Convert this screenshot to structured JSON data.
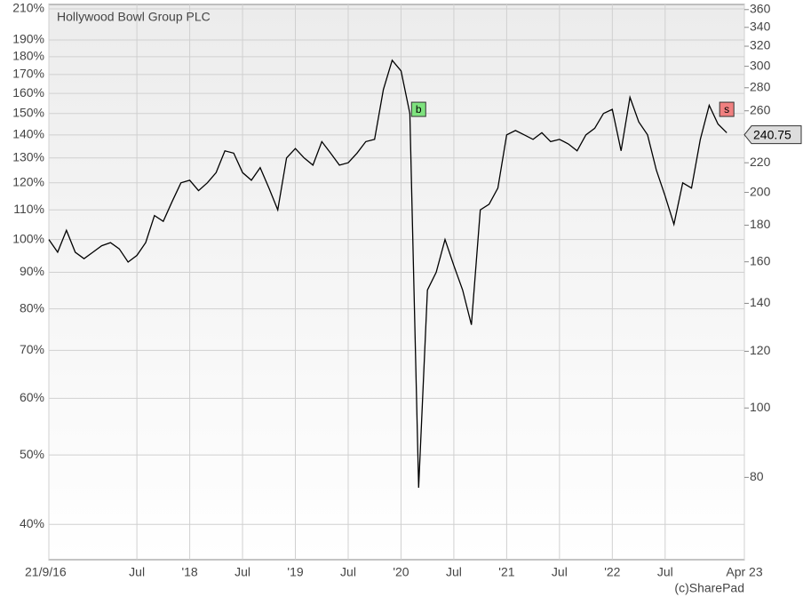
{
  "chart_data": {
    "type": "line",
    "title": "Hollywood Bowl Group PLC",
    "credit": "(c)SharePad",
    "log_scale": true,
    "grid": true,
    "x": [
      "2016-09",
      "2016-10",
      "2016-11",
      "2016-12",
      "2017-01",
      "2017-02",
      "2017-03",
      "2017-04",
      "2017-05",
      "2017-06",
      "2017-07",
      "2017-08",
      "2017-09",
      "2017-10",
      "2017-11",
      "2017-12",
      "2018-01",
      "2018-02",
      "2018-03",
      "2018-04",
      "2018-05",
      "2018-06",
      "2018-07",
      "2018-08",
      "2018-09",
      "2018-10",
      "2018-11",
      "2018-12",
      "2019-01",
      "2019-02",
      "2019-03",
      "2019-04",
      "2019-05",
      "2019-06",
      "2019-07",
      "2019-08",
      "2019-09",
      "2019-10",
      "2019-11",
      "2019-12",
      "2020-01",
      "2020-02",
      "2020-03",
      "2020-04",
      "2020-05",
      "2020-06",
      "2020-07",
      "2020-08",
      "2020-09",
      "2020-10",
      "2020-11",
      "2020-12",
      "2021-01",
      "2021-02",
      "2021-03",
      "2021-04",
      "2021-05",
      "2021-06",
      "2021-07",
      "2021-08",
      "2021-09",
      "2021-10",
      "2021-11",
      "2021-12",
      "2022-01",
      "2022-02",
      "2022-03",
      "2022-04",
      "2022-05",
      "2022-06",
      "2022-07",
      "2022-08",
      "2022-09",
      "2022-10",
      "2022-11",
      "2022-12",
      "2023-01",
      "2023-02"
    ],
    "series": [
      {
        "color": "#000000",
        "values": [
          100,
          96,
          103,
          96,
          94,
          96,
          98,
          99,
          97,
          93,
          95,
          99,
          108,
          106,
          113,
          120,
          121,
          117,
          120,
          124,
          133,
          132,
          124,
          121,
          126,
          118,
          110,
          130,
          134,
          130,
          127,
          137,
          132,
          127,
          128,
          132,
          137,
          138,
          162,
          178,
          172,
          150,
          45,
          85,
          90,
          100,
          92,
          85,
          76,
          110,
          112,
          118,
          140,
          142,
          140,
          138,
          141,
          137,
          138,
          136,
          133,
          140,
          143,
          150,
          152,
          133,
          158,
          146,
          140,
          125,
          115,
          105,
          120,
          118,
          138,
          154,
          145,
          141
        ]
      }
    ],
    "xlim": [
      "2016-09",
      "2023-04"
    ],
    "xticks": [
      {
        "value": "2016-09",
        "label": "21/9/16"
      },
      {
        "value": "2017-07",
        "label": "Jul"
      },
      {
        "value": "2018-01",
        "label": "'18"
      },
      {
        "value": "2018-07",
        "label": "Jul"
      },
      {
        "value": "2019-01",
        "label": "'19"
      },
      {
        "value": "2019-07",
        "label": "Jul"
      },
      {
        "value": "2020-01",
        "label": "'20"
      },
      {
        "value": "2020-07",
        "label": "Jul"
      },
      {
        "value": "2021-01",
        "label": "'21"
      },
      {
        "value": "2021-07",
        "label": "Jul"
      },
      {
        "value": "2022-01",
        "label": "'22"
      },
      {
        "value": "2022-07",
        "label": "Jul"
      },
      {
        "value": "2023-04",
        "label": "Apr 23"
      }
    ],
    "ylim": [
      35.7,
      213
    ],
    "yticks": [
      {
        "value": 40,
        "label": "40%"
      },
      {
        "value": 50,
        "label": "50%"
      },
      {
        "value": 60,
        "label": "60%"
      },
      {
        "value": 70,
        "label": "70%"
      },
      {
        "value": 80,
        "label": "80%"
      },
      {
        "value": 90,
        "label": "90%"
      },
      {
        "value": 100,
        "label": "100%"
      },
      {
        "value": 110,
        "label": "110%"
      },
      {
        "value": 120,
        "label": "120%"
      },
      {
        "value": 130,
        "label": "130%"
      },
      {
        "value": 140,
        "label": "140%"
      },
      {
        "value": 150,
        "label": "150%"
      },
      {
        "value": 160,
        "label": "160%"
      },
      {
        "value": 170,
        "label": "170%"
      },
      {
        "value": 180,
        "label": "180%"
      },
      {
        "value": 190,
        "label": "190%"
      },
      {
        "value": 210,
        "label": "210%"
      }
    ],
    "y2lim": [
      61.4,
      366
    ],
    "y2ticks": [
      80,
      100,
      120,
      140,
      160,
      180,
      200,
      220,
      240,
      260,
      280,
      300,
      320,
      340,
      360
    ],
    "last_price": 240.75,
    "annotations": [
      {
        "text": "b",
        "x": "2020-03",
        "y": 152,
        "color": "#7ee27e"
      },
      {
        "text": "s",
        "x": "2023-02",
        "y": 152,
        "color": "#f08080"
      }
    ]
  }
}
